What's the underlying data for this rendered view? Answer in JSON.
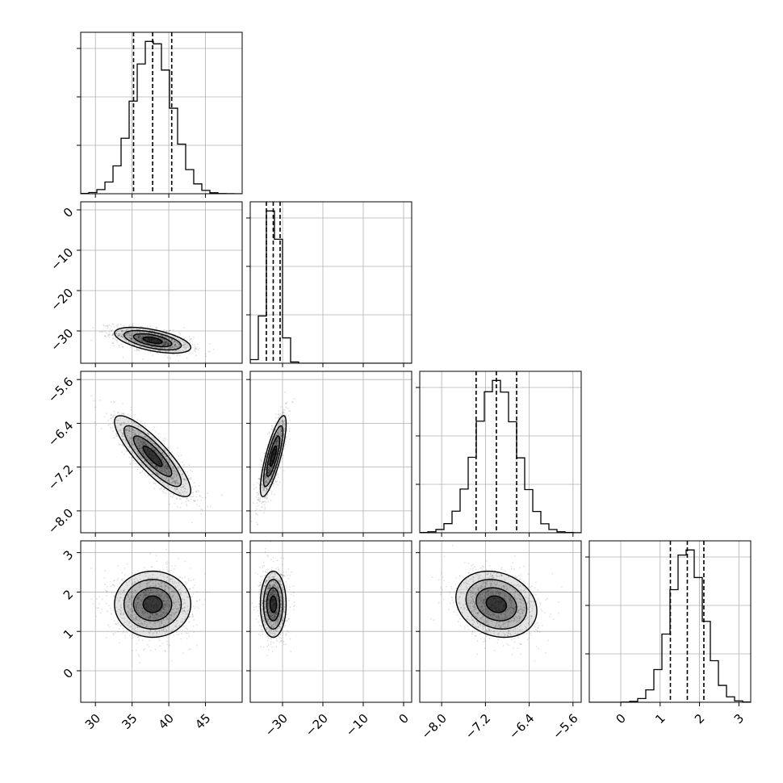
{
  "chart_data": {
    "type": "corner",
    "parameters": [
      {
        "key": "p0",
        "range": [
          28,
          50
        ],
        "ticks": [
          30,
          35,
          40,
          45
        ],
        "tick_labels": [
          "30",
          "35",
          "40",
          "45"
        ],
        "mean": 37.8,
        "sd": 2.6,
        "quantiles": [
          35.2,
          37.8,
          40.4
        ]
      },
      {
        "key": "p1",
        "range": [
          -38,
          2
        ],
        "ticks": [
          -30,
          -20,
          -10,
          0
        ],
        "tick_labels": [
          "−30",
          "−20",
          "−10",
          "0"
        ],
        "mean": -32.3,
        "sd": 1.6,
        "quantiles": [
          -34.0,
          -32.3,
          -30.6
        ]
      },
      {
        "key": "p2",
        "range": [
          -8.4,
          -5.45
        ],
        "ticks": [
          -8.0,
          -7.2,
          -6.4,
          -5.6
        ],
        "tick_labels": [
          "−8.0",
          "−7.2",
          "−6.4",
          "−5.6"
        ],
        "mean": -7.0,
        "sd": 0.37,
        "quantiles": [
          -7.37,
          -7.0,
          -6.63
        ]
      },
      {
        "key": "p3",
        "range": [
          -0.8,
          3.3
        ],
        "ticks": [
          0,
          1,
          2,
          3
        ],
        "tick_labels": [
          "0",
          "1",
          "2",
          "3"
        ],
        "mean": 1.69,
        "sd": 0.42,
        "quantiles": [
          1.26,
          1.69,
          2.11
        ]
      }
    ],
    "correlations": {
      "1-0": -0.55,
      "2-0": -0.85,
      "2-1": 0.8,
      "3-0": 0.0,
      "3-1": 0.0,
      "3-2": -0.2
    },
    "contour_levels_sigma": [
      0.5,
      1.0,
      1.5,
      2.0
    ],
    "grid": true
  }
}
